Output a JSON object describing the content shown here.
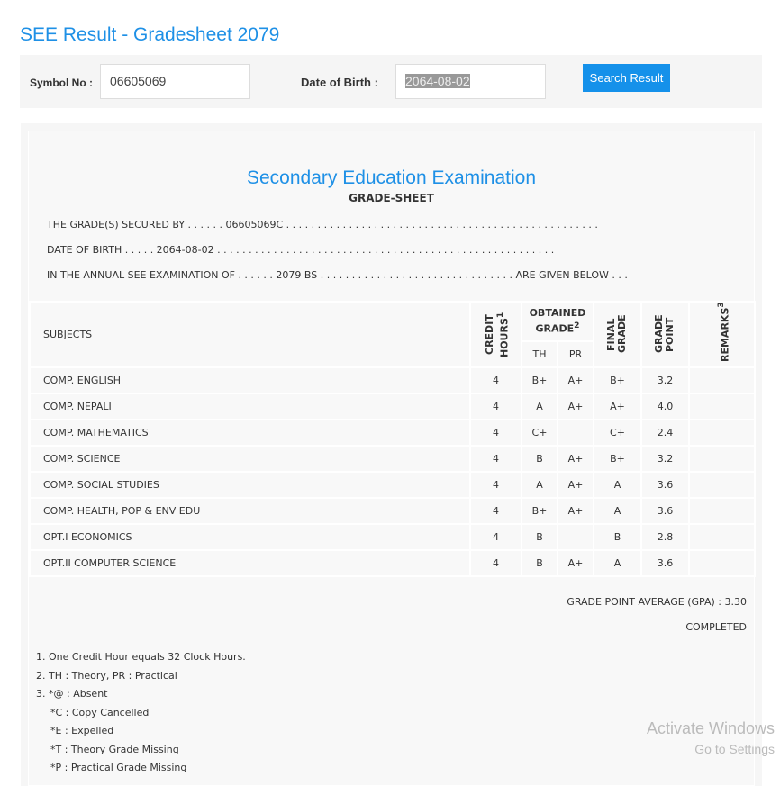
{
  "page_title": "SEE Result - Gradesheet 2079",
  "search": {
    "symbol_label": "Symbol No :",
    "symbol_value": "06605069",
    "dob_label": "Date of Birth :",
    "dob_value": "2064-08-02",
    "button": "Search Result"
  },
  "sheet": {
    "heading": "Secondary Education Examination",
    "subheading": "GRADE-SHEET",
    "line1": "THE GRADE(S) SECURED BY . . . . . . 06605069C . . . . . . . . . . . . . . . . . . . . . . . . . . . . . . . . . . . . . . . . . . . . . . . . . .",
    "line2": "DATE OF BIRTH . . . . . 2064-08-02 . . . . . . . . . . . . . . . . . . . . . . . . . . . . . . . . . . . . . . . . . . . . . . . . . . . . . .",
    "line3": "IN THE ANNUAL SEE EXAMINATION OF . . . . . . 2079 BS . . . . . . . . . . . . . . . . . . . . . . . . . . . . . . . ARE GIVEN BELOW . . .",
    "headers": {
      "subjects": "SUBJECTS",
      "credit": "CREDIT HOURS",
      "credit_sup": "1",
      "obtained": "OBTAINED GRADE",
      "obtained_sup": "2",
      "th": "TH",
      "pr": "PR",
      "final": "FINAL GRADE",
      "point": "GRADE POINT",
      "remarks": "REMARKS",
      "remarks_sup": "3"
    },
    "rows": [
      {
        "subject": "COMP. ENGLISH",
        "credit": "4",
        "th": "B+",
        "pr": "A+",
        "final": "B+",
        "gp": "3.2",
        "remarks": ""
      },
      {
        "subject": "COMP. NEPALI",
        "credit": "4",
        "th": "A",
        "pr": "A+",
        "final": "A+",
        "gp": "4.0",
        "remarks": ""
      },
      {
        "subject": "COMP. MATHEMATICS",
        "credit": "4",
        "th": "C+",
        "pr": "",
        "final": "C+",
        "gp": "2.4",
        "remarks": ""
      },
      {
        "subject": "COMP. SCIENCE",
        "credit": "4",
        "th": "B",
        "pr": "A+",
        "final": "B+",
        "gp": "3.2",
        "remarks": ""
      },
      {
        "subject": "COMP. SOCIAL STUDIES",
        "credit": "4",
        "th": "A",
        "pr": "A+",
        "final": "A",
        "gp": "3.6",
        "remarks": ""
      },
      {
        "subject": "COMP. HEALTH, POP & ENV EDU",
        "credit": "4",
        "th": "B+",
        "pr": "A+",
        "final": "A",
        "gp": "3.6",
        "remarks": ""
      },
      {
        "subject": "OPT.I ECONOMICS",
        "credit": "4",
        "th": "B",
        "pr": "",
        "final": "B",
        "gp": "2.8",
        "remarks": ""
      },
      {
        "subject": "OPT.II COMPUTER SCIENCE",
        "credit": "4",
        "th": "B",
        "pr": "A+",
        "final": "A",
        "gp": "3.6",
        "remarks": ""
      }
    ],
    "gpa": "GRADE POINT AVERAGE (GPA) : 3.30",
    "status": "COMPLETED",
    "notes": [
      "1. One Credit Hour equals 32 Clock Hours.",
      "2. TH : Theory, PR : Practical",
      "3. *@ : Absent",
      "*C : Copy Cancelled",
      "*E : Expelled",
      "*T : Theory Grade Missing",
      "*P : Practical Grade Missing"
    ]
  },
  "watermark": {
    "line1": "Activate Windows",
    "line2": "Go to Settings"
  }
}
